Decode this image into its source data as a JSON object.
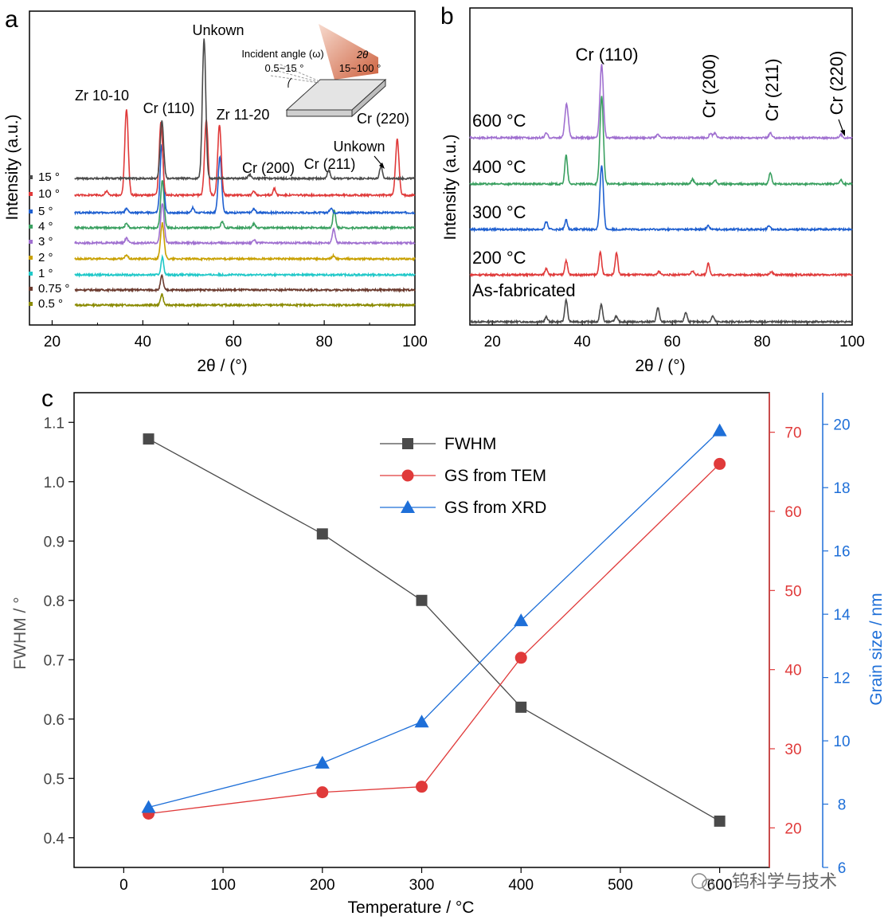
{
  "chart_data": [
    {
      "panel_label": "a",
      "type": "line",
      "xlabel": "2θ / (°)",
      "ylabel": "Intensity (a.u.)",
      "xlim": [
        15,
        100
      ],
      "xticks": [
        20,
        40,
        60,
        80,
        100
      ],
      "series": [
        {
          "name": "0.5 °",
          "color": "#8a8a00",
          "x_start": 25,
          "peaks": [
            [
              44.2,
              14
            ]
          ]
        },
        {
          "name": "0.75 °",
          "color": "#6b3a2e",
          "x_start": 25,
          "peaks": [
            [
              44.2,
              18
            ]
          ]
        },
        {
          "name": "1 °",
          "color": "#1fc8c8",
          "x_start": 25,
          "peaks": [
            [
              44.3,
              22
            ]
          ]
        },
        {
          "name": "2 °",
          "color": "#c8a000",
          "x_start": 25,
          "peaks": [
            [
              44.3,
              45
            ],
            [
              36.4,
              5
            ],
            [
              82,
              4
            ]
          ]
        },
        {
          "name": "3 °",
          "color": "#a070d0",
          "x_start": 25,
          "peaks": [
            [
              44.3,
              50
            ],
            [
              36.4,
              6
            ],
            [
              82.1,
              18
            ],
            [
              64.5,
              4
            ]
          ]
        },
        {
          "name": "4 °",
          "color": "#3aa060",
          "x_start": 25,
          "peaks": [
            [
              44.3,
              60
            ],
            [
              36.4,
              6
            ],
            [
              82.2,
              22
            ],
            [
              57.5,
              8
            ],
            [
              64.5,
              5
            ]
          ]
        },
        {
          "name": "5 °",
          "color": "#1e5fd0",
          "x_start": 25,
          "peaks": [
            [
              44.2,
              85
            ],
            [
              57.0,
              70
            ],
            [
              36.4,
              5
            ],
            [
              51,
              6
            ],
            [
              81.5,
              6
            ],
            [
              64.5,
              5
            ]
          ]
        },
        {
          "name": "10 °",
          "color": "#e03a3a",
          "x_start": 25,
          "peaks": [
            [
              36.4,
              108
            ],
            [
              44.0,
              92
            ],
            [
              54.0,
              95
            ],
            [
              56.9,
              88
            ],
            [
              96.1,
              70
            ],
            [
              69.0,
              8
            ],
            [
              64.5,
              5
            ],
            [
              32,
              5
            ]
          ]
        },
        {
          "name": "15 °",
          "color": "#4a4a4a",
          "x_start": 25,
          "peaks": [
            [
              44.2,
              73
            ],
            [
              53.5,
              175
            ],
            [
              81.0,
              10
            ],
            [
              92.5,
              15
            ],
            [
              63.5,
              5
            ]
          ]
        }
      ],
      "annotations": [
        "Zr 10-10",
        "Cr (110)",
        "Unkown",
        "Zr 11-20",
        "Cr (200)",
        "Cr (211)",
        "Unkown",
        "Cr (220)"
      ],
      "inset": {
        "incident_label": "Incident angle (ω)",
        "incident_range": "0.5~15 °",
        "two_theta_label": "2θ",
        "two_theta_range": "15~100 °"
      }
    },
    {
      "panel_label": "b",
      "type": "line",
      "xlabel": "2θ / (°)",
      "ylabel": "Intensity (a.u.)",
      "xlim": [
        15,
        100
      ],
      "xticks": [
        20,
        40,
        60,
        80,
        100
      ],
      "series": [
        {
          "name": "As-fabricated",
          "color": "#4a4a4a",
          "peaks": [
            [
              36.4,
              28
            ],
            [
              44.2,
              22
            ],
            [
              56.8,
              18
            ],
            [
              63.0,
              12
            ],
            [
              47.5,
              7
            ],
            [
              69,
              7
            ],
            [
              32,
              6
            ]
          ]
        },
        {
          "name": "200 °C",
          "color": "#e03a3a",
          "peaks": [
            [
              36.4,
              18
            ],
            [
              44.0,
              28
            ],
            [
              47.6,
              28
            ],
            [
              68.0,
              14
            ],
            [
              32,
              8
            ],
            [
              57,
              4
            ],
            [
              64.5,
              5
            ],
            [
              82,
              4
            ]
          ]
        },
        {
          "name": "300 °C",
          "color": "#1e5fd0",
          "peaks": [
            [
              44.3,
              80
            ],
            [
              36.4,
              12
            ],
            [
              32,
              10
            ],
            [
              68,
              5
            ],
            [
              81.5,
              5
            ]
          ]
        },
        {
          "name": "400 °C",
          "color": "#3aa060",
          "peaks": [
            [
              44.3,
              110
            ],
            [
              36.4,
              36
            ],
            [
              81.8,
              14
            ],
            [
              64.5,
              6
            ],
            [
              69.5,
              5
            ],
            [
              97.5,
              5
            ]
          ]
        },
        {
          "name": "600 °C",
          "color": "#a070d0",
          "peaks": [
            [
              44.3,
              92
            ],
            [
              36.5,
              42
            ],
            [
              32,
              6
            ],
            [
              68.5,
              6
            ],
            [
              69.5,
              6
            ],
            [
              81.8,
              6
            ],
            [
              56.8,
              4
            ],
            [
              97.5,
              4
            ]
          ]
        }
      ],
      "annotations": [
        "Cr (110)",
        "Cr (200)",
        "Cr (211)",
        "Cr (220)"
      ]
    },
    {
      "panel_label": "c",
      "type": "line",
      "xlabel": "Temperature / °C",
      "ylabel": "FWHM / °",
      "ylabel_right1": "",
      "ylabel_right2": "Grain size / nm",
      "xlim": [
        -50,
        650
      ],
      "xticks": [
        0,
        100,
        200,
        300,
        400,
        500,
        600
      ],
      "ylim": [
        0.35,
        1.15
      ],
      "yticks": [
        0.4,
        0.5,
        0.6,
        0.7,
        0.8,
        0.9,
        1.0,
        1.1
      ],
      "ylim_right1": [
        15,
        75
      ],
      "yticks_right1": [
        20,
        30,
        40,
        50,
        60,
        70
      ],
      "ylim_right2": [
        6,
        21
      ],
      "yticks_right2": [
        6,
        8,
        10,
        12,
        14,
        16,
        18,
        20
      ],
      "x": [
        25,
        200,
        300,
        400,
        600
      ],
      "series": [
        {
          "name": "FWHM",
          "axis": "left",
          "color": "#4a4a4a",
          "marker": "square",
          "values": [
            1.072,
            0.912,
            0.8,
            0.62,
            0.428
          ]
        },
        {
          "name": "GS from TEM",
          "axis": "right1",
          "color": "#e03a3a",
          "marker": "circle",
          "values": [
            21.8,
            24.5,
            25.2,
            41.5,
            66.0
          ]
        },
        {
          "name": "GS from XRD",
          "axis": "right2",
          "color": "#1e6fd8",
          "marker": "triangle",
          "values": [
            7.9,
            9.3,
            10.6,
            13.8,
            19.8
          ]
        }
      ]
    }
  ],
  "watermark": "钨科学与技术"
}
